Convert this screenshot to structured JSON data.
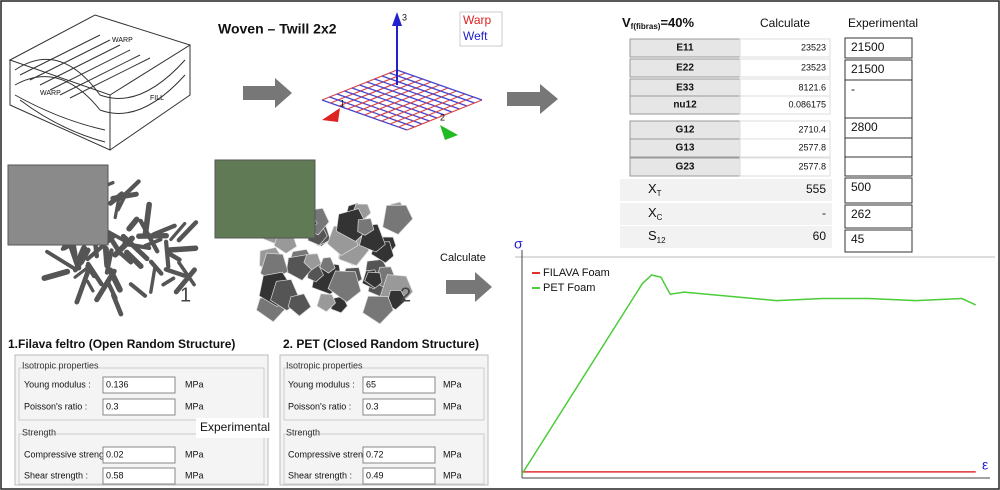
{
  "woven": {
    "title": "Woven – Twill 2x2",
    "legend": [
      "Warp",
      "Weft"
    ],
    "axes": [
      "3",
      "1",
      "2"
    ],
    "sketch_labels": [
      "WARP",
      "FILL",
      "WARP"
    ]
  },
  "table": {
    "header": {
      "v": "V",
      "v_sub": "f(fibras)",
      "v_rest": "=40%",
      "calculate": "Calculate",
      "experimental": "Experimental"
    },
    "rows": [
      {
        "label": "E11",
        "calculate": "23523",
        "experimental": "21500"
      },
      {
        "label": "E22",
        "calculate": "23523",
        "experimental": "21500"
      },
      {
        "label": "E33",
        "calculate": "8121.6",
        "experimental": "-"
      },
      {
        "label": "nu12",
        "calculate": "0.086175",
        "experimental": null
      },
      {
        "label": "G12",
        "calculate": "2710.4",
        "experimental": "2800"
      },
      {
        "label": "G13",
        "calculate": "2577.8",
        "experimental": null
      },
      {
        "label": "G23",
        "calculate": "2577.8",
        "experimental": null
      },
      {
        "label": "X",
        "label_sub": "T",
        "calculate": "555",
        "experimental": "500"
      },
      {
        "label": "X",
        "label_sub": "C",
        "calculate": "-",
        "experimental": "262"
      },
      {
        "label": "S",
        "label_sub": "12",
        "calculate": "60",
        "experimental": "45"
      }
    ]
  },
  "calculate_label": "Calculate",
  "experimental_label": "Experimental",
  "foams": [
    {
      "number": "1",
      "title": "1.Filava feltro (Open Random Structure)",
      "section": "Isotropic properties",
      "strength": "Strength",
      "fields": [
        {
          "label": "Young modulus :",
          "value": "0.136",
          "unit": "MPa"
        },
        {
          "label": "Poisson's ratio :",
          "value": "0.3",
          "unit": "MPa"
        },
        {
          "label": "Compressive strength :",
          "value": "0.02",
          "unit": "MPa"
        },
        {
          "label": "Shear strength :",
          "value": "0.58",
          "unit": "MPa"
        }
      ]
    },
    {
      "number": "2",
      "title": "2. PET (Closed Random Structure)",
      "section": "Isotropic properties",
      "strength": "Strength",
      "fields": [
        {
          "label": "Young modulus :",
          "value": "65",
          "unit": "MPa"
        },
        {
          "label": "Poisson's ratio :",
          "value": "0.3",
          "unit": "MPa"
        },
        {
          "label": "Compressive strength :",
          "value": "0.72",
          "unit": "MPa"
        },
        {
          "label": "Shear strength :",
          "value": "0.49",
          "unit": "MPa"
        }
      ]
    }
  ],
  "chart_data": {
    "type": "line",
    "x_label": "ε",
    "y_label": "σ",
    "xlim": [
      0,
      1
    ],
    "ylim": [
      0,
      1
    ],
    "x": [
      0,
      0.26,
      0.28,
      0.3,
      0.32,
      0.35,
      0.45,
      0.55,
      0.65,
      0.75,
      0.85,
      0.95,
      0.98
    ],
    "series": [
      {
        "name": "FILAVA Foam",
        "color": "#e03030",
        "values": [
          0.01,
          0.01,
          0.01,
          0.01,
          0.01,
          0.01,
          0.01,
          0.01,
          0.01,
          0.01,
          0.01,
          0.01,
          0.01
        ]
      },
      {
        "name": "PET Foam",
        "color": "#4ccc3a",
        "values": [
          0,
          0.89,
          0.93,
          0.92,
          0.84,
          0.85,
          0.83,
          0.81,
          0.82,
          0.82,
          0.81,
          0.82,
          0.79
        ]
      }
    ]
  }
}
